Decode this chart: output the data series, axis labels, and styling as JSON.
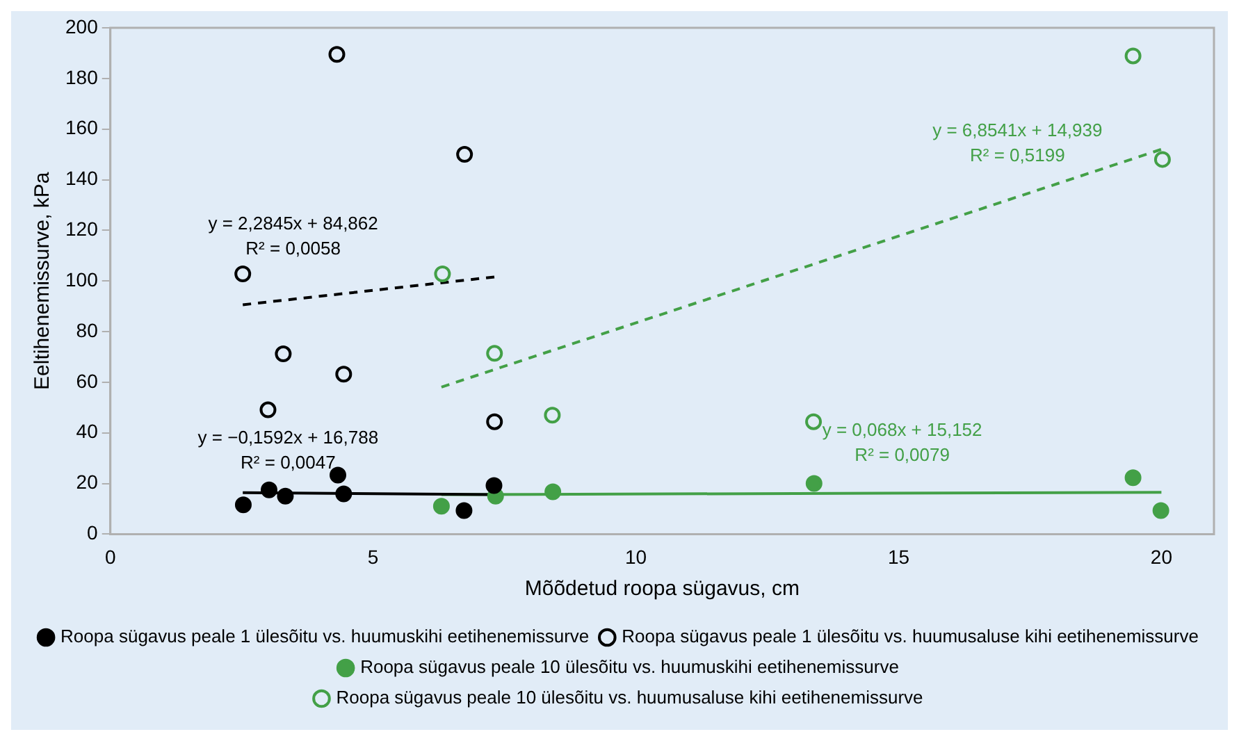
{
  "chart_data": {
    "type": "scatter",
    "xlabel": "Mõõdetud roopa sügavus, cm",
    "ylabel": "Eeltihenemissurve, kPa",
    "xlim": [
      0,
      21
    ],
    "xticks": [
      0,
      5,
      10,
      15,
      20
    ],
    "ylim": [
      0,
      200
    ],
    "yticks": [
      0,
      20,
      40,
      60,
      80,
      100,
      120,
      140,
      160,
      180,
      200
    ],
    "grid": false,
    "legend": "bottom",
    "marker": "circle",
    "series": [
      {
        "name": "Roopa sügavus peale 1 ülesõitu vs. huumuskihi eetihenemissurve",
        "color": "#000000",
        "x": [
          2.53,
          3.02,
          3.33,
          4.33,
          4.44,
          6.73,
          7.3
        ],
        "values": [
          11.6,
          17.5,
          15,
          23.3,
          15.9,
          9.3,
          19.2
        ]
      },
      {
        "name": "Roopa sügavus peale 1 ülesõitu vs. huumusaluse kihi eetihenemissurve",
        "color": "#000000",
        "x": [
          4.31,
          6.74,
          2.52,
          3.29,
          4.44,
          3.0,
          7.31
        ],
        "values": [
          189.5,
          150,
          102.8,
          71.2,
          63.2,
          49.1,
          44.4
        ]
      },
      {
        "name": "Roopa sügavus peale 10 ülesõitu vs. huumuskihi eetihenemissurve",
        "color": "#43a047",
        "x": [
          6.3,
          7.33,
          8.42,
          13.39,
          19.46,
          19.99
        ],
        "values": [
          11,
          15,
          16.7,
          20,
          22.3,
          9.3
        ]
      },
      {
        "name": "Roopa sügavus peale 10 ülesõitu vs. huumusaluse kihi eetihenemissurve",
        "color": "#43a047",
        "x": [
          6.32,
          7.31,
          8.41,
          13.38,
          19.46,
          20.02
        ],
        "values": [
          102.8,
          71.4,
          47,
          44.4,
          188.9,
          148
        ]
      },
      {
        "type": "line",
        "color": "#000000",
        "line_style": "solid",
        "marker": "none",
        "x": [
          2.52,
          7.31
        ],
        "values": [
          16.4,
          15.6
        ]
      },
      {
        "type": "line",
        "color": "#000000",
        "line_style": "dashed",
        "marker": "none",
        "x": [
          2.52,
          7.31
        ],
        "values": [
          90.6,
          101.6
        ]
      },
      {
        "type": "line",
        "color": "#43a047",
        "line_style": "solid",
        "marker": "none",
        "x": [
          6.3,
          20
        ],
        "values": [
          15.6,
          16.5
        ]
      },
      {
        "type": "line",
        "color": "#43a047",
        "line_style": "dashed",
        "marker": "none",
        "x": [
          6.3,
          20
        ],
        "values": [
          58.1,
          152.0
        ]
      }
    ],
    "annotations": [
      "y = −0,1592x + 16,788\nR² = 0,0047",
      "y = 2,2845x + 84,862\nR² = 0,0058",
      "y = 0,068x + 15,152\nR² = 0,0079",
      "y = 6,8541x + 14,939\nR² = 0,5199"
    ]
  }
}
